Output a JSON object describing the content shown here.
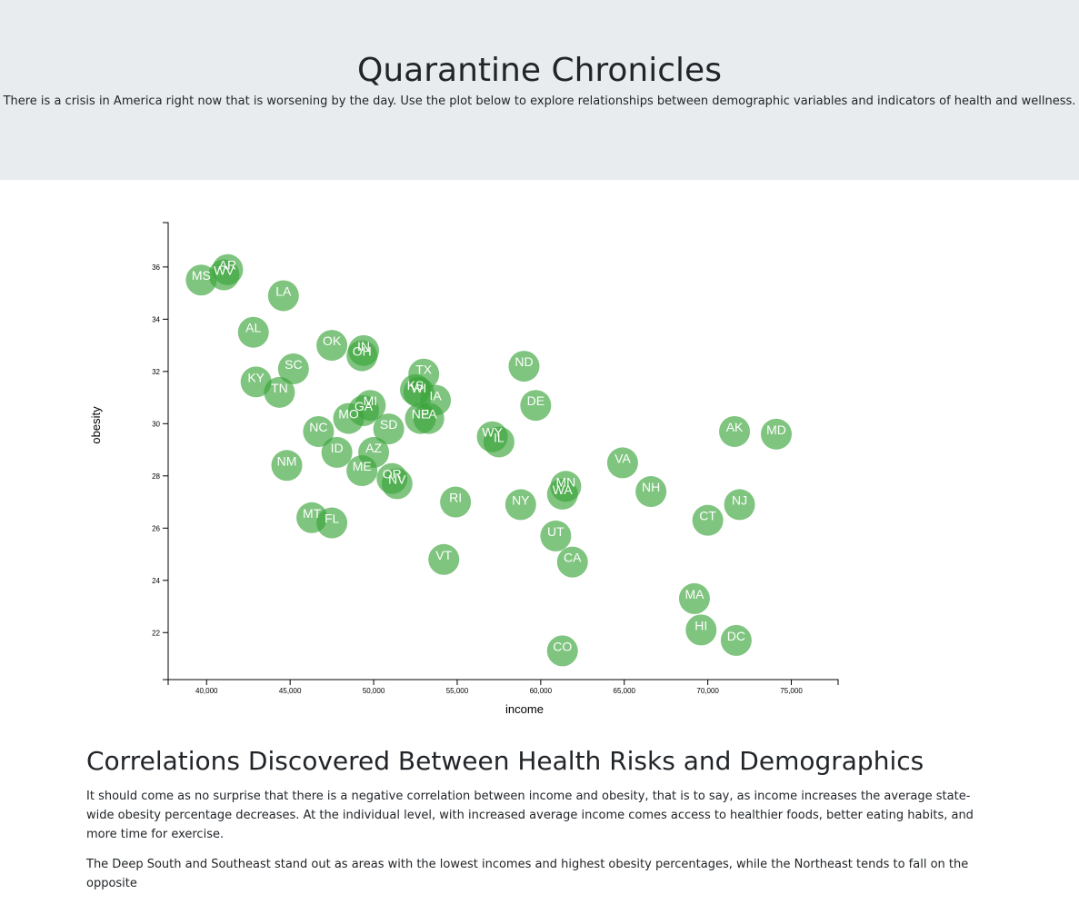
{
  "header": {
    "title": "Quarantine Chronicles",
    "subtitle": "There is a crisis in America right now that is worsening by the day. Use the plot below to explore relationships between demographic variables and indicators of health and wellness."
  },
  "chart_data": {
    "type": "scatter",
    "xlabel": "income",
    "ylabel": "obesity",
    "xlim": [
      37700,
      77800
    ],
    "ylim": [
      20.2,
      37.7
    ],
    "xticks": [
      40000,
      45000,
      50000,
      55000,
      60000,
      65000,
      70000,
      75000
    ],
    "xtick_labels": [
      "40,000",
      "45,000",
      "50,000",
      "55,000",
      "60,000",
      "65,000",
      "70,000",
      "75,000"
    ],
    "yticks": [
      22,
      24,
      26,
      28,
      30,
      32,
      34,
      36
    ],
    "yticks_labels": [
      "22",
      "24",
      "26",
      "28",
      "30",
      "32",
      "34",
      "36"
    ],
    "marker_color": "#3ba53b",
    "points": [
      {
        "label": "MS",
        "x": 39680,
        "y": 35.5
      },
      {
        "label": "AR",
        "x": 41260,
        "y": 35.9
      },
      {
        "label": "WV",
        "x": 41040,
        "y": 35.7
      },
      {
        "label": "LA",
        "x": 44600,
        "y": 34.9
      },
      {
        "label": "AL",
        "x": 42800,
        "y": 33.5
      },
      {
        "label": "OK",
        "x": 47500,
        "y": 33.0
      },
      {
        "label": "IN",
        "x": 49400,
        "y": 32.8
      },
      {
        "label": "OH",
        "x": 49300,
        "y": 32.6
      },
      {
        "label": "SC",
        "x": 45200,
        "y": 32.1
      },
      {
        "label": "KY",
        "x": 42960,
        "y": 31.6
      },
      {
        "label": "TN",
        "x": 44360,
        "y": 31.2
      },
      {
        "label": "TX",
        "x": 53000,
        "y": 31.9
      },
      {
        "label": "KS",
        "x": 52500,
        "y": 31.3
      },
      {
        "label": "WI",
        "x": 52700,
        "y": 31.2
      },
      {
        "label": "IA",
        "x": 53700,
        "y": 30.9
      },
      {
        "label": "ND",
        "x": 59000,
        "y": 32.2
      },
      {
        "label": "DE",
        "x": 59700,
        "y": 30.7
      },
      {
        "label": "MI",
        "x": 49800,
        "y": 30.7
      },
      {
        "label": "GA",
        "x": 49400,
        "y": 30.5
      },
      {
        "label": "MO",
        "x": 48500,
        "y": 30.2
      },
      {
        "label": "NE",
        "x": 52800,
        "y": 30.2
      },
      {
        "label": "PA",
        "x": 53300,
        "y": 30.2
      },
      {
        "label": "SD",
        "x": 50900,
        "y": 29.8
      },
      {
        "label": "NC",
        "x": 46700,
        "y": 29.7
      },
      {
        "label": "WY",
        "x": 57100,
        "y": 29.5
      },
      {
        "label": "IL",
        "x": 57500,
        "y": 29.3
      },
      {
        "label": "AK",
        "x": 71600,
        "y": 29.7
      },
      {
        "label": "MD",
        "x": 74100,
        "y": 29.6
      },
      {
        "label": "ID",
        "x": 47800,
        "y": 28.9
      },
      {
        "label": "AZ",
        "x": 50000,
        "y": 28.9
      },
      {
        "label": "NM",
        "x": 44800,
        "y": 28.4
      },
      {
        "label": "ME",
        "x": 49300,
        "y": 28.2
      },
      {
        "label": "VA",
        "x": 64900,
        "y": 28.5
      },
      {
        "label": "OR",
        "x": 51100,
        "y": 27.9
      },
      {
        "label": "NV",
        "x": 51400,
        "y": 27.7
      },
      {
        "label": "MN",
        "x": 61500,
        "y": 27.6
      },
      {
        "label": "WA",
        "x": 61300,
        "y": 27.3
      },
      {
        "label": "NH",
        "x": 66600,
        "y": 27.4
      },
      {
        "label": "RI",
        "x": 54900,
        "y": 27.0
      },
      {
        "label": "NY",
        "x": 58800,
        "y": 26.9
      },
      {
        "label": "NJ",
        "x": 71900,
        "y": 26.9
      },
      {
        "label": "MT",
        "x": 46300,
        "y": 26.4
      },
      {
        "label": "FL",
        "x": 47500,
        "y": 26.2
      },
      {
        "label": "CT",
        "x": 70000,
        "y": 26.3
      },
      {
        "label": "UT",
        "x": 60900,
        "y": 25.7
      },
      {
        "label": "CA",
        "x": 61900,
        "y": 24.7
      },
      {
        "label": "VT",
        "x": 54200,
        "y": 24.8
      },
      {
        "label": "MA",
        "x": 69200,
        "y": 23.3
      },
      {
        "label": "HI",
        "x": 69600,
        "y": 22.1
      },
      {
        "label": "DC",
        "x": 71700,
        "y": 21.7
      },
      {
        "label": "CO",
        "x": 61300,
        "y": 21.3
      }
    ]
  },
  "article": {
    "heading": "Correlations Discovered Between Health Risks and Demographics",
    "paragraphs": [
      "It should come as no surprise that there is a negative correlation between income and obesity, that is to say, as income increases the average state-wide obesity percentage decreases. At the individual level, with increased average income comes access to healthier foods, better eating habits, and more time for exercise.",
      "The Deep South and Southeast stand out as areas with the lowest incomes and highest obesity percentages, while the Northeast tends to fall on the opposite"
    ]
  }
}
